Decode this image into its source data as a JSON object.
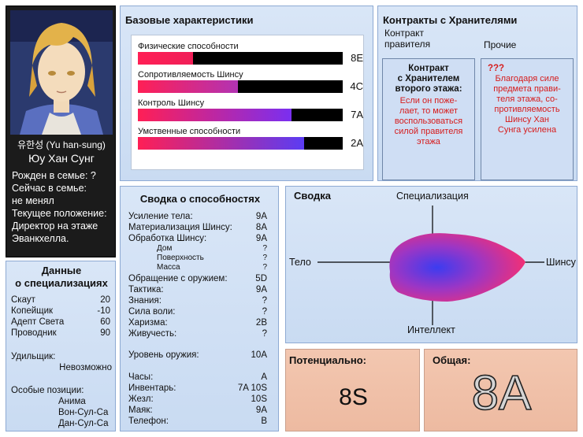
{
  "portrait": {
    "korean_name": "유한성 (Yu han-sung)",
    "name": "Юу Хан Сунг",
    "born_label": "Рожден в семье: ?",
    "now_label": "Сейчас в семье:",
    "now_value": "не менял",
    "position_label": "Текущее положение:",
    "position_value_1": "Директор на этаже",
    "position_value_2": "Эванкхелла."
  },
  "base": {
    "title": "Базовые характеристики",
    "stats": [
      {
        "label": "Физические способности",
        "grade": "8E",
        "fill": 0.27,
        "color": "#f01f58"
      },
      {
        "label": "Сопротивляемость Шинсу",
        "grade": "4C",
        "fill": 0.49,
        "color": "#b233b3"
      },
      {
        "label": "Контроль Шинсу",
        "grade": "7A",
        "fill": 0.75,
        "color": "#7a2ff0"
      },
      {
        "label": "Умственные способности",
        "grade": "2A",
        "fill": 0.81,
        "color": "#5b3cf3"
      }
    ]
  },
  "contracts": {
    "title": "Контракты с Хранителями",
    "sub1_line1": "Контракт",
    "sub1_line2": "правителя",
    "sub2": "Прочие",
    "box1_head_1": "Контракт",
    "box1_head_2": "с Хранителем",
    "box1_head_3": "второго этажа:",
    "box1_text": [
      "Если он поже-",
      "лает, то может",
      "воспользоваться",
      "силой правителя",
      "этажа"
    ],
    "box2_head": "???",
    "box2_text": [
      "Благодаря силе",
      "предмета прави-",
      "теля этажа, со-",
      "противляемость",
      "Шинсу  Хан",
      "Сунга усилена"
    ]
  },
  "spec": {
    "title_1": "Данные",
    "title_2": "о специализациях",
    "rows": [
      {
        "label": "Скаут",
        "value": "20"
      },
      {
        "label": "Копейщик",
        "value": "-10"
      },
      {
        "label": "Адепт Света",
        "value": "60"
      },
      {
        "label": "Проводник",
        "value": "90"
      }
    ],
    "wielder_label": "Удильщик:",
    "wielder_value": "Невозможно",
    "special_label": "Особые позиции:",
    "special_values": [
      "Анима",
      "Вон-Сул-Са",
      "Дан-Сул-Са"
    ]
  },
  "abilities": {
    "title": "Сводка о способностях",
    "rows": [
      {
        "label": "Усиление тела:",
        "value": "9A"
      },
      {
        "label": "Материализация Шинсу:",
        "value": "8A"
      },
      {
        "label": "Обработка Шинсу:",
        "value": "9A"
      }
    ],
    "subrows": [
      {
        "label": "Дом",
        "value": "?"
      },
      {
        "label": "Поверхность",
        "value": "?"
      },
      {
        "label": "Масса",
        "value": "?"
      }
    ],
    "rows2": [
      {
        "label": "Обращение с оружием:",
        "value": "5D"
      },
      {
        "label": "Тактика:",
        "value": "9A"
      },
      {
        "label": "Знания:",
        "value": "?"
      },
      {
        "label": "Сила воли:",
        "value": "?"
      },
      {
        "label": "Харизма:",
        "value": "2B"
      },
      {
        "label": "Живучесть:",
        "value": "?"
      }
    ],
    "weapon_label": "Уровень оружия:",
    "weapon_value": "10A",
    "items": [
      {
        "label": "Часы:",
        "value": "A"
      },
      {
        "label": "Инвентарь:",
        "value": "7A 10S"
      },
      {
        "label": "Жезл:",
        "value": "10S"
      },
      {
        "label": "Маяк:",
        "value": "9A"
      },
      {
        "label": "Телефон:",
        "value": "B"
      }
    ]
  },
  "summary": {
    "title": "Сводка",
    "top": "Специализация",
    "bottom": "Интеллект",
    "left": "Тело",
    "right": "Шинсу"
  },
  "potential": {
    "label": "Потенциально:",
    "value": "8S"
  },
  "total": {
    "label": "Общая:",
    "value": "8A"
  }
}
